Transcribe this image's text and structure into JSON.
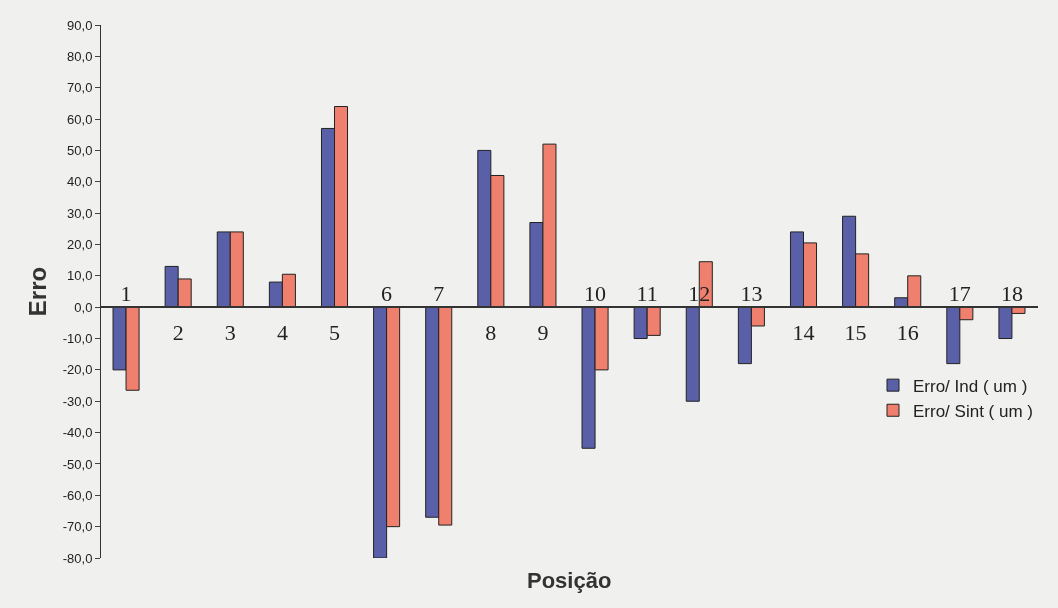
{
  "chart_data": {
    "type": "bar",
    "xlabel": "Posição",
    "ylabel": "Erro",
    "categories": [
      "1",
      "2",
      "3",
      "4",
      "5",
      "6",
      "7",
      "8",
      "9",
      "10",
      "11",
      "12",
      "13",
      "14",
      "15",
      "16",
      "17",
      "18"
    ],
    "series": [
      {
        "name": "Erro/ Ind ( um )",
        "color": "#5a60a8",
        "values": [
          -20,
          13,
          24,
          8,
          57,
          -80,
          -67,
          50,
          27,
          -45,
          -10,
          -30,
          -18,
          24,
          29,
          3,
          -18,
          -10
        ]
      },
      {
        "name": "Erro/ Sint ( um )",
        "color": "#f0806e",
        "values": [
          -26.5,
          9,
          24,
          10.5,
          64,
          -70,
          -69.5,
          42,
          52,
          -20,
          -9,
          14.5,
          -6,
          20.5,
          17,
          10,
          -4,
          -2
        ]
      }
    ],
    "ylim": [
      -80,
      90
    ],
    "yticks": [
      {
        "value": -80,
        "label": "-80,0"
      },
      {
        "value": -70,
        "label": "-70,0"
      },
      {
        "value": -60,
        "label": "-60,0"
      },
      {
        "value": -50,
        "label": "-50,0"
      },
      {
        "value": -40,
        "label": "-40,0"
      },
      {
        "value": -30,
        "label": "-30,0"
      },
      {
        "value": -20,
        "label": "-20,0"
      },
      {
        "value": -10,
        "label": "-10,0"
      },
      {
        "value": 0,
        "label": "0,0"
      },
      {
        "value": 10,
        "label": "10,0"
      },
      {
        "value": 20,
        "label": "20,0"
      },
      {
        "value": 30,
        "label": "30,0"
      },
      {
        "value": 40,
        "label": "40,0"
      },
      {
        "value": 50,
        "label": "50,0"
      },
      {
        "value": 60,
        "label": "60,0"
      },
      {
        "value": 70,
        "label": "70,0"
      },
      {
        "value": 80,
        "label": "80,0"
      },
      {
        "value": 90,
        "label": "90,0"
      }
    ],
    "grid": false,
    "legend": "right"
  }
}
